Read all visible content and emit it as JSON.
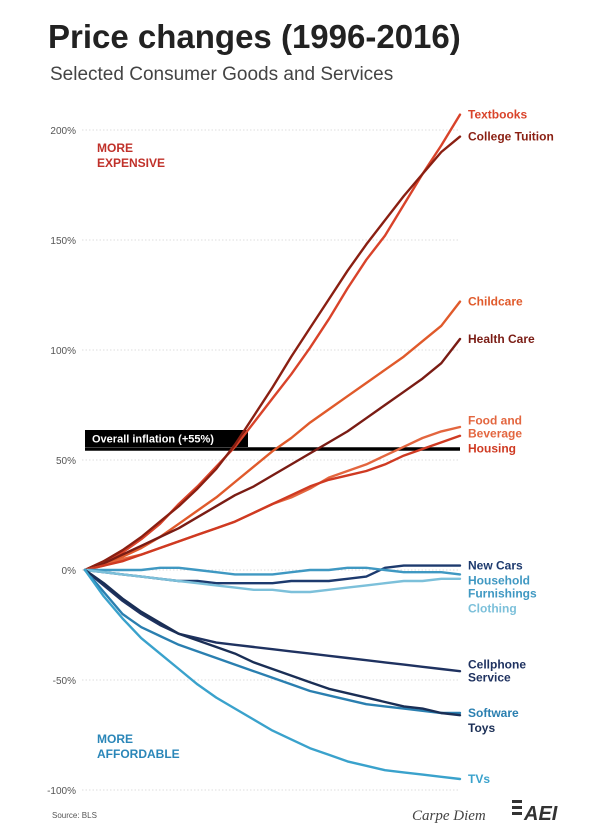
{
  "chart_data": {
    "type": "line",
    "title": "Price changes (1996-2016)",
    "subtitle": "Selected Consumer Goods and Services",
    "x": [
      0,
      1,
      2,
      3,
      4,
      5,
      6,
      7,
      8,
      9,
      10,
      11,
      12,
      13,
      14,
      15,
      16,
      17,
      18,
      19,
      20
    ],
    "ylim": [
      -100,
      210
    ],
    "yticks": [
      200,
      150,
      100,
      50,
      0,
      -50,
      -100
    ],
    "ytick_labels": [
      "200%",
      "150%",
      "100%",
      "50%",
      "0%",
      "-50%",
      "-100%"
    ],
    "grid": true,
    "series": [
      {
        "name": "Textbooks",
        "color": "#d9432a",
        "values": [
          0,
          4,
          8,
          14,
          21,
          30,
          38,
          47,
          56,
          67,
          78,
          89,
          101,
          114,
          128,
          141,
          152,
          166,
          180,
          193,
          207
        ]
      },
      {
        "name": "College Tuition",
        "color": "#8a1f12",
        "values": [
          0,
          4,
          9,
          15,
          22,
          29,
          37,
          46,
          57,
          70,
          83,
          97,
          110,
          123,
          136,
          148,
          159,
          170,
          180,
          190,
          197
        ]
      },
      {
        "name": "Childcare",
        "color": "#e05a2b",
        "values": [
          0,
          3,
          6,
          10,
          15,
          21,
          27,
          33,
          40,
          47,
          54,
          60,
          67,
          73,
          79,
          85,
          91,
          97,
          104,
          111,
          122
        ]
      },
      {
        "name": "Health Care",
        "color": "#7a1c14",
        "values": [
          0,
          3,
          7,
          11,
          15,
          19,
          24,
          29,
          34,
          38,
          43,
          48,
          53,
          58,
          63,
          69,
          75,
          81,
          87,
          94,
          105
        ]
      },
      {
        "name": "Food and Beverage",
        "color": "#e3663f",
        "values": [
          0,
          2,
          5,
          7,
          10,
          13,
          16,
          19,
          22,
          26,
          30,
          33,
          37,
          42,
          45,
          48,
          52,
          56,
          60,
          63,
          65
        ]
      },
      {
        "name": "Housing",
        "color": "#cf3a22",
        "values": [
          0,
          2,
          4,
          7,
          10,
          13,
          16,
          19,
          22,
          26,
          30,
          34,
          38,
          41,
          43,
          45,
          48,
          52,
          55,
          58,
          61
        ]
      },
      {
        "name": "New Cars",
        "color": "#1d3a6e",
        "values": [
          0,
          -1,
          -2,
          -3,
          -4,
          -5,
          -5,
          -6,
          -6,
          -6,
          -6,
          -5,
          -5,
          -5,
          -4,
          -3,
          1,
          2,
          2,
          2,
          2
        ]
      },
      {
        "name": "Household Furnishings",
        "color": "#3f98c2",
        "values": [
          0,
          0,
          0,
          0,
          1,
          1,
          0,
          -1,
          -2,
          -2,
          -2,
          -1,
          0,
          0,
          1,
          1,
          0,
          -1,
          -1,
          -1,
          -2
        ]
      },
      {
        "name": "Clothing",
        "color": "#7cc0da",
        "values": [
          0,
          -1,
          -2,
          -3,
          -4,
          -5,
          -6,
          -7,
          -8,
          -9,
          -9,
          -10,
          -10,
          -9,
          -8,
          -7,
          -6,
          -5,
          -5,
          -4,
          -4
        ]
      },
      {
        "name": "Cellphone Service",
        "color": "#1f3260",
        "values": [
          0,
          -7,
          -14,
          -20,
          -25,
          -29,
          -31,
          -33,
          -34,
          -35,
          -36,
          -37,
          -38,
          -39,
          -40,
          -41,
          -42,
          -43,
          -44,
          -45,
          -46
        ]
      },
      {
        "name": "Software",
        "color": "#2a7fb0",
        "values": [
          0,
          -10,
          -20,
          -26,
          -30,
          -34,
          -37,
          -40,
          -43,
          -46,
          -49,
          -52,
          -55,
          -57,
          -59,
          -61,
          -62,
          -63,
          -64,
          -65,
          -65
        ]
      },
      {
        "name": "Toys",
        "color": "#1a2e55",
        "values": [
          0,
          -6,
          -13,
          -19,
          -24,
          -29,
          -32,
          -35,
          -38,
          -42,
          -45,
          -48,
          -51,
          -54,
          -56,
          -58,
          -60,
          -62,
          -63,
          -65,
          -66
        ]
      },
      {
        "name": "TVs",
        "color": "#3aa2cc",
        "values": [
          0,
          -12,
          -22,
          -31,
          -38,
          -45,
          -52,
          -58,
          -63,
          -68,
          -73,
          -77,
          -81,
          -84,
          -87,
          -89,
          -91,
          -92,
          -93,
          -94,
          -95
        ]
      }
    ],
    "series_label_lines": {
      "Textbooks": [
        "Textbooks"
      ],
      "College Tuition": [
        "College Tuition"
      ],
      "Childcare": [
        "Childcare"
      ],
      "Health Care": [
        "Health Care"
      ],
      "Food and Beverage": [
        "Food and",
        "Beverage"
      ],
      "Housing": [
        "Housing"
      ],
      "New Cars": [
        "New Cars"
      ],
      "Household Furnishings": [
        "Household",
        "Furnishings"
      ],
      "Clothing": [
        "Clothing"
      ],
      "Cellphone Service": [
        "Cellphone",
        "Service"
      ],
      "Software": [
        "Software"
      ],
      "Toys": [
        "Toys"
      ],
      "TVs": [
        "TVs"
      ]
    },
    "reference_line": {
      "label": "Overall inflation (+55%)",
      "value": 55
    },
    "annotations": {
      "more_expensive": [
        "MORE",
        "EXPENSIVE"
      ],
      "more_affordable": [
        "MORE",
        "AFFORDABLE"
      ]
    },
    "source": "Source: BLS",
    "brand": "Carpe Diem",
    "logo": "AEI"
  }
}
